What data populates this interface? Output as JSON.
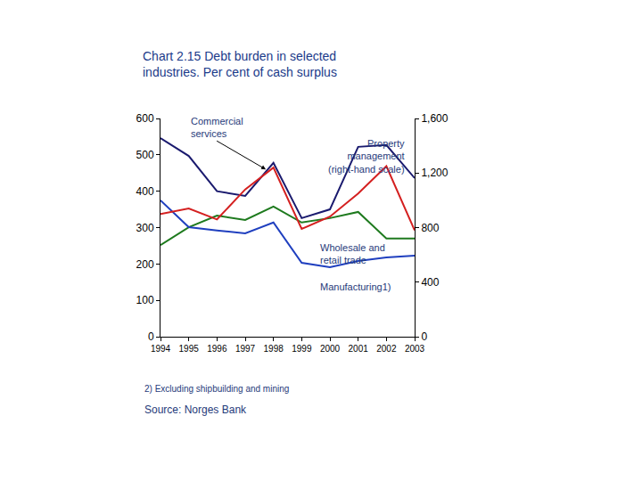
{
  "chart_data": {
    "type": "line",
    "title": "Chart 2.15 Debt burden in selected industries. Per cent of cash surplus",
    "categories": [
      "1994",
      "1995",
      "1996",
      "1997",
      "1998",
      "1999",
      "2000",
      "2001",
      "2002",
      "2003"
    ],
    "series": [
      {
        "name": "Commercial services",
        "color": "#1a1a6e",
        "values": [
          546,
          497,
          400,
          387,
          478,
          326,
          350,
          522,
          527,
          436
        ]
      },
      {
        "name": "Property management (right-hand scale)",
        "color": "#d42020",
        "axis": "y2",
        "values": [
          900,
          940,
          860,
          1080,
          1240,
          790,
          880,
          1050,
          1250,
          780
        ]
      },
      {
        "name": "Wholesale and retail trade",
        "color": "#1e7a1e",
        "values": [
          252,
          301,
          333,
          321,
          358,
          314,
          326,
          343,
          270,
          270
        ]
      },
      {
        "name": "Manufacturing1)",
        "color": "#1f3fbf",
        "values": [
          375,
          301,
          292,
          284,
          314,
          203,
          191,
          208,
          218,
          223
        ]
      }
    ],
    "ylim": [
      0,
      600
    ],
    "yticks": [
      0,
      100,
      200,
      300,
      400,
      500,
      600
    ],
    "y2lim": [
      0,
      1600
    ],
    "y2ticks": [
      0,
      400,
      800,
      {
        "value": 1200,
        "label": "1,200"
      },
      {
        "value": 1600,
        "label": "1,600"
      }
    ],
    "grid": false,
    "annotations": [
      "2) Excluding shipbuilding and mining",
      "Source: Norges Bank"
    ]
  }
}
